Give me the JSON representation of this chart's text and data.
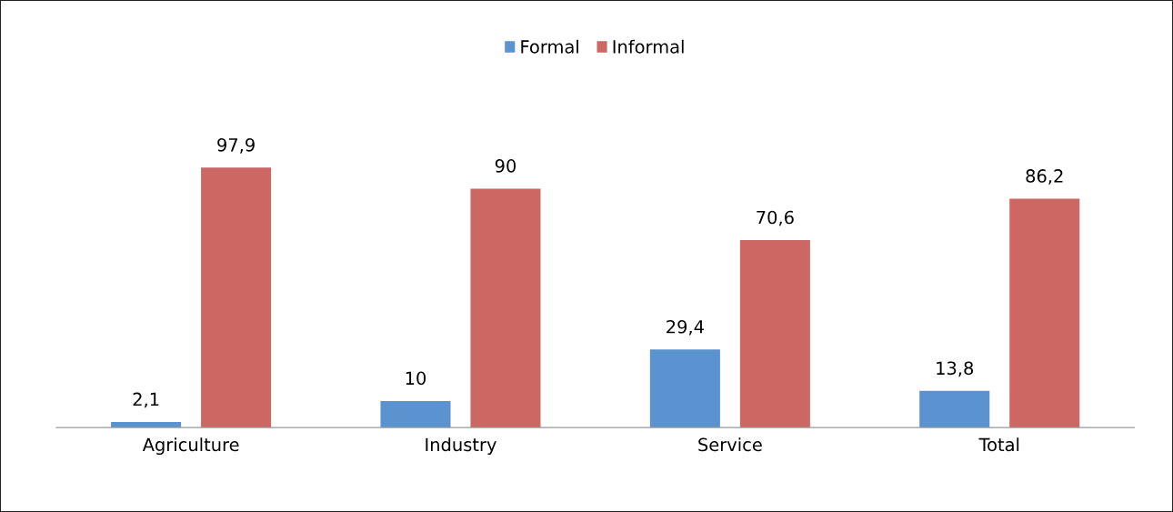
{
  "chart_data": {
    "type": "bar",
    "categories": [
      "Agriculture",
      "Industry",
      "Service",
      "Total"
    ],
    "series": [
      {
        "name": "Formal",
        "color": "#5b93d0",
        "values": [
          2.1,
          10,
          29.4,
          13.8
        ],
        "value_labels": [
          "2,1",
          "10",
          "29,4",
          "13,8"
        ]
      },
      {
        "name": "Informal",
        "color": "#cd6764",
        "values": [
          97.9,
          90,
          70.6,
          86.2
        ],
        "value_labels": [
          "97,9",
          "90",
          "70,6",
          "86,2"
        ]
      }
    ],
    "tick_labels": "x",
    "grid": false,
    "legend": "top"
  }
}
